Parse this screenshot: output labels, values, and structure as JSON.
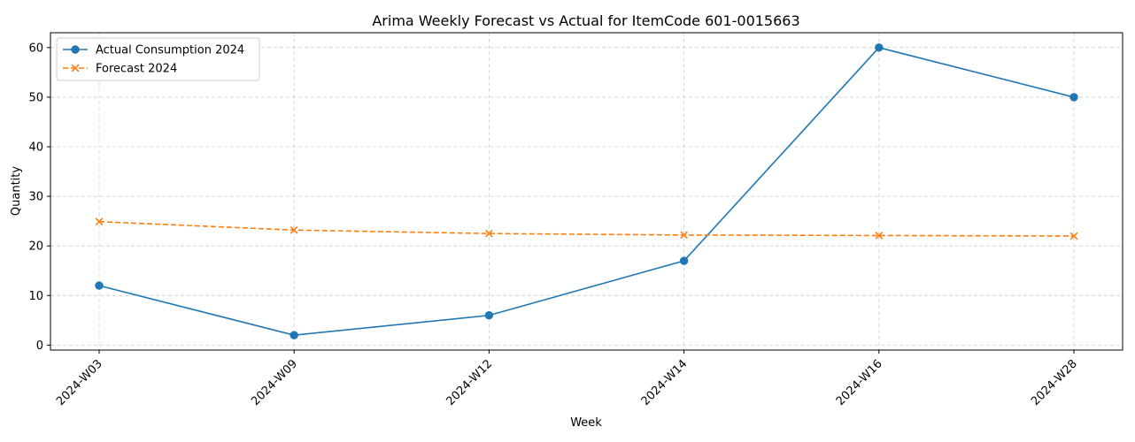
{
  "chart_data": {
    "type": "line",
    "title": "Arima Weekly Forecast vs Actual for ItemCode 601-0015663",
    "xlabel": "Week",
    "ylabel": "Quantity",
    "categories": [
      "2024-W03",
      "2024-W09",
      "2024-W12",
      "2024-W14",
      "2024-W16",
      "2024-W28"
    ],
    "ylim": [
      -1,
      63
    ],
    "yticks": [
      0,
      10,
      20,
      30,
      40,
      50,
      60
    ],
    "grid": true,
    "legend_position": "top-left",
    "series": [
      {
        "name": "Actual Consumption 2024",
        "values": [
          12,
          2,
          6,
          17,
          60,
          50
        ],
        "color": "#1f77b4",
        "marker": "circle",
        "linestyle": "solid"
      },
      {
        "name": "Forecast 2024",
        "values": [
          24.9,
          23.2,
          22.5,
          22.2,
          22.1,
          22.0
        ],
        "color": "#ff7f0e",
        "marker": "x",
        "linestyle": "dashed"
      }
    ]
  }
}
